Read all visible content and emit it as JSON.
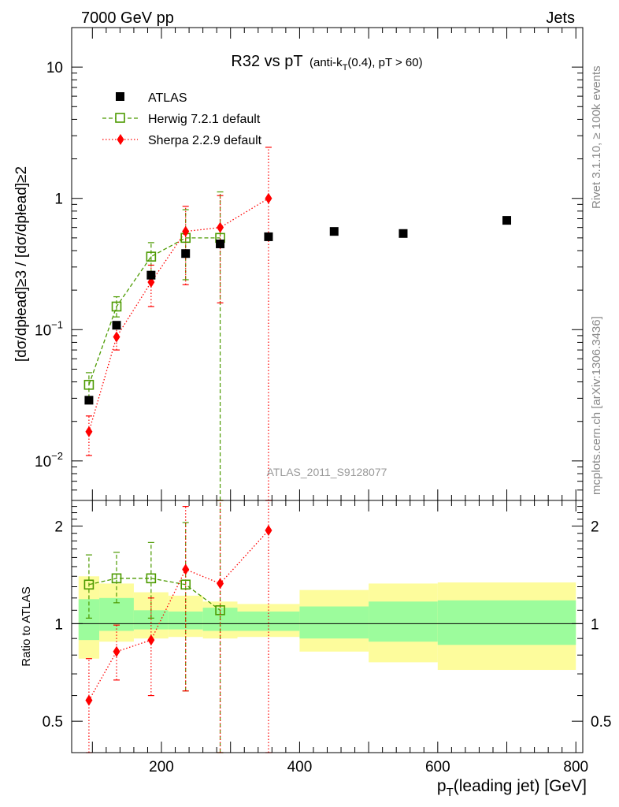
{
  "header": {
    "left": "7000 GeV pp",
    "right": "Jets"
  },
  "side_texts": {
    "rivet": "Rivet 3.1.10, ≥ 100k events",
    "mcplots": "mcplots.cern.ch [arXiv:1306.3436]"
  },
  "chart_data": [
    {
      "type": "scatter",
      "title_main": "R32 vs pT",
      "title_sub_a": "(anti-k",
      "title_sub_b": "T",
      "title_sub_c": "(0.4), pT > 60)",
      "watermark": "ATLAS_2011_S9128077",
      "ylabel": "[dσ/dpłead]≥3 / [dσ/dpłead]≥2",
      "yscale": "log",
      "ylim": [
        0.005,
        20
      ],
      "xlim": [
        70,
        810
      ],
      "y_ticks": [
        {
          "value": 0.01,
          "base": "10",
          "exp": "−2"
        },
        {
          "value": 0.1,
          "base": "10",
          "exp": "−1"
        },
        {
          "value": 1,
          "base": "1",
          "exp": ""
        },
        {
          "value": 10,
          "base": "10",
          "exp": ""
        }
      ],
      "legend": {
        "placement": "top-left",
        "atlas": "ATLAS",
        "herwig": "Herwig 7.2.1 default",
        "sherpa": "Sherpa 2.2.9 default"
      },
      "series": [
        {
          "name": "ATLAS",
          "color": "#000000",
          "marker": "square-filled",
          "x": [
            95,
            135,
            185,
            235,
            285,
            355,
            450,
            550,
            700
          ],
          "y": [
            0.029,
            0.108,
            0.26,
            0.38,
            0.45,
            0.51,
            0.56,
            0.54,
            0.68
          ]
        },
        {
          "name": "Herwig 7.2.1 default",
          "color": "#4c9a00",
          "marker": "square-open",
          "x": [
            95,
            135,
            185,
            235,
            285
          ],
          "y": [
            0.038,
            0.15,
            0.36,
            0.5,
            0.5
          ],
          "err_lo": [
            0.03,
            0.125,
            0.27,
            0.24,
            0.0001
          ],
          "err_hi": [
            0.047,
            0.178,
            0.46,
            0.82,
            1.12
          ]
        },
        {
          "name": "Sherpa 2.2.9 default",
          "color": "#ff0000",
          "marker": "diamond",
          "x": [
            95,
            135,
            185,
            235,
            285,
            355
          ],
          "y": [
            0.0167,
            0.088,
            0.23,
            0.56,
            0.6,
            1.0
          ],
          "err_lo": [
            0.011,
            0.07,
            0.15,
            0.22,
            0.16,
            0.0001
          ],
          "err_hi": [
            0.022,
            0.107,
            0.31,
            0.87,
            1.05,
            2.45
          ]
        }
      ]
    },
    {
      "type": "scatter",
      "xlabel": "p",
      "xlabel_sub": "T",
      "xlabel_rest": "(leading jet) [GeV]",
      "ylabel": "Ratio to ATLAS",
      "yscale": "log",
      "ylim": [
        0.4,
        2.4
      ],
      "xlim": [
        70,
        810
      ],
      "x_ticks": [
        200,
        400,
        600,
        800
      ],
      "y_ticks": [
        0.5,
        1,
        2
      ],
      "reference_line": 1,
      "bands": [
        {
          "x0": 80,
          "x1": 110,
          "g_lo": 0.89,
          "g_hi": 1.19,
          "y_lo": 0.78,
          "y_hi": 1.4
        },
        {
          "x0": 110,
          "x1": 160,
          "g_lo": 0.95,
          "g_hi": 1.2,
          "y_lo": 0.88,
          "y_hi": 1.33
        },
        {
          "x0": 160,
          "x1": 210,
          "g_lo": 0.96,
          "g_hi": 1.1,
          "y_lo": 0.9,
          "y_hi": 1.25
        },
        {
          "x0": 210,
          "x1": 260,
          "g_lo": 0.96,
          "g_hi": 1.09,
          "y_lo": 0.91,
          "y_hi": 1.22
        },
        {
          "x0": 260,
          "x1": 310,
          "g_lo": 0.95,
          "g_hi": 1.12,
          "y_lo": 0.9,
          "y_hi": 1.17
        },
        {
          "x0": 310,
          "x1": 400,
          "g_lo": 0.95,
          "g_hi": 1.09,
          "y_lo": 0.91,
          "y_hi": 1.15
        },
        {
          "x0": 400,
          "x1": 500,
          "g_lo": 0.9,
          "g_hi": 1.13,
          "y_lo": 0.82,
          "y_hi": 1.27
        },
        {
          "x0": 500,
          "x1": 600,
          "g_lo": 0.88,
          "g_hi": 1.17,
          "y_lo": 0.76,
          "y_hi": 1.33
        },
        {
          "x0": 600,
          "x1": 800,
          "g_lo": 0.86,
          "g_hi": 1.18,
          "y_lo": 0.72,
          "y_hi": 1.34
        }
      ],
      "band_colors": {
        "green": "#9cfc9c",
        "yellow": "#fdfc9c"
      },
      "series": [
        {
          "name": "Herwig 7.2.1 default",
          "color": "#4c9a00",
          "marker": "square-open",
          "x": [
            95,
            135,
            185,
            235,
            285
          ],
          "y": [
            1.32,
            1.38,
            1.38,
            1.32,
            1.1
          ],
          "err_lo": [
            1.04,
            1.16,
            1.04,
            0.62,
            0.3
          ],
          "err_hi": [
            1.63,
            1.66,
            1.78,
            2.05,
            2.4
          ]
        },
        {
          "name": "Sherpa 2.2.9 default",
          "color": "#ff0000",
          "marker": "diamond",
          "x": [
            95,
            135,
            185,
            235,
            285,
            355
          ],
          "y": [
            0.58,
            0.82,
            0.89,
            1.47,
            1.33,
            1.94
          ],
          "err_lo": [
            0.3,
            0.67,
            0.6,
            0.62,
            0.3,
            0.3
          ],
          "err_hi": [
            0.78,
            0.99,
            1.2,
            2.3,
            2.4,
            2.4
          ]
        }
      ]
    }
  ]
}
